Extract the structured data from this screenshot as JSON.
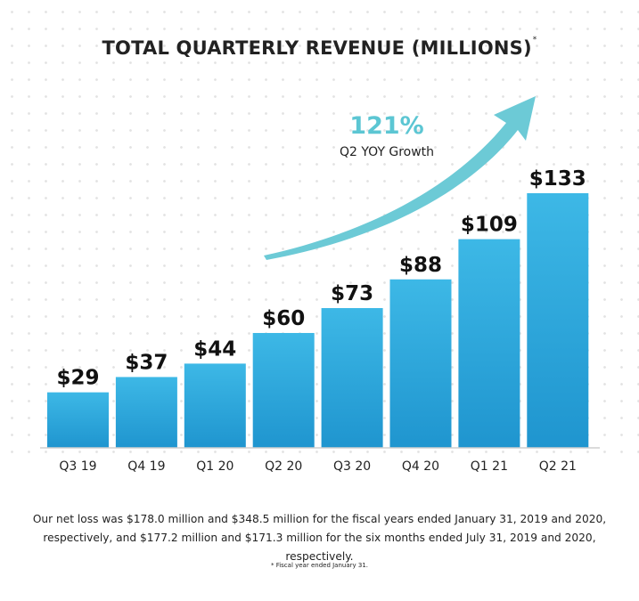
{
  "title": "TOTAL QUARTERLY REVENUE (MILLIONS)",
  "title_mark": "*",
  "growth": {
    "value": "121%",
    "label": "Q2 YOY Growth"
  },
  "colors": {
    "bar_top": "#3db8e6",
    "bar_bottom": "#1f95cf",
    "arrow": "#6ccad6",
    "growth_text": "#5cc6d3",
    "axis": "#cfcfcf"
  },
  "chart_data": {
    "type": "bar",
    "title": "TOTAL QUARTERLY REVENUE (MILLIONS)",
    "xlabel": "",
    "ylabel": "",
    "unit_prefix": "$",
    "categories": [
      "Q3 19",
      "Q4 19",
      "Q1 20",
      "Q2 20",
      "Q3 20",
      "Q4 20",
      "Q1 21",
      "Q2 21"
    ],
    "values": [
      29,
      37,
      44,
      60,
      73,
      88,
      109,
      133
    ],
    "data_labels": [
      "$29",
      "$37",
      "$44",
      "$60",
      "$73",
      "$88",
      "$109",
      "$133"
    ],
    "ylim": [
      0,
      133
    ],
    "grid": false,
    "legend": "none",
    "annotation": {
      "text": "121%",
      "subtext": "Q2 YOY Growth",
      "shape": "upward curved arrow"
    }
  },
  "footnote": "Our net loss was $178.0 million and $348.5 million for the fiscal years ended January 31, 2019 and 2020, respectively, and $177.2 million and $171.3 million for the six months ended July 31, 2019 and 2020, respectively.",
  "fiscal_note": "* Fiscal year ended January 31."
}
